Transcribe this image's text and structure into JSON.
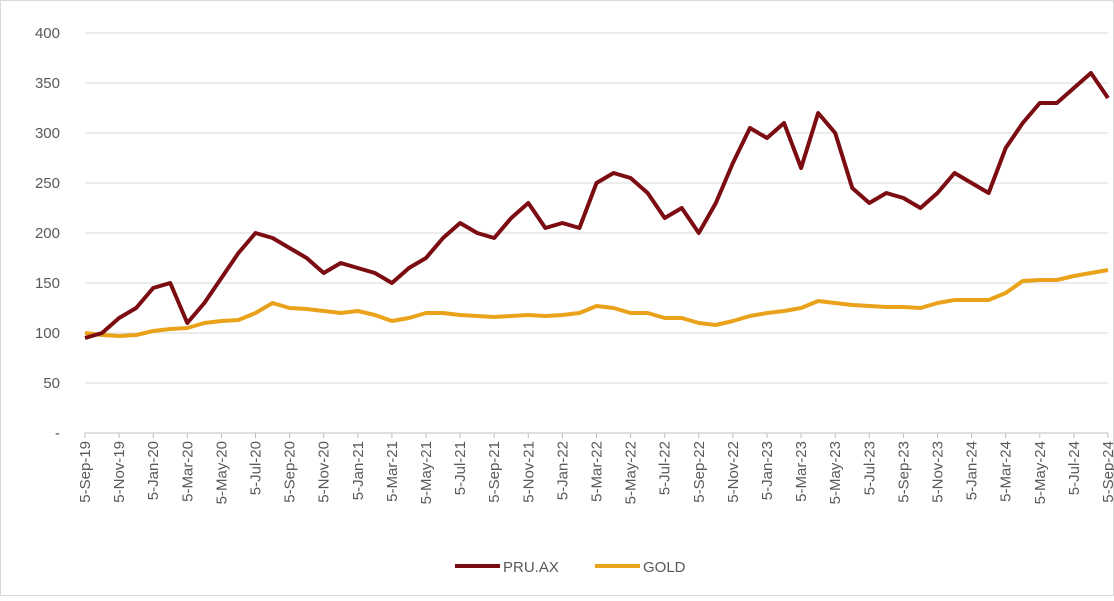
{
  "chart_data": {
    "type": "line",
    "categories": [
      "5-Sep-19",
      null,
      "5-Nov-19",
      null,
      "5-Jan-20",
      null,
      "5-Mar-20",
      null,
      "5-May-20",
      null,
      "5-Jul-20",
      null,
      "5-Sep-20",
      null,
      "5-Nov-20",
      null,
      "5-Jan-21",
      null,
      "5-Mar-21",
      null,
      "5-May-21",
      null,
      "5-Jul-21",
      null,
      "5-Sep-21",
      null,
      "5-Nov-21",
      null,
      "5-Jan-22",
      null,
      "5-Mar-22",
      null,
      "5-May-22",
      null,
      "5-Jul-22",
      null,
      "5-Sep-22",
      null,
      "5-Nov-22",
      null,
      "5-Jan-23",
      null,
      "5-Mar-23",
      null,
      "5-May-23",
      null,
      "5-Jul-23",
      null,
      "5-Sep-23",
      null,
      "5-Nov-23",
      null,
      "5-Jan-24",
      null,
      "5-Mar-24",
      null,
      "5-May-24",
      null,
      "5-Jul-24",
      null,
      "5-Sep-24"
    ],
    "series": [
      {
        "name": "PRU.AX",
        "color": "#7b0c12",
        "values": [
          95,
          100,
          115,
          125,
          145,
          150,
          110,
          130,
          155,
          180,
          200,
          195,
          185,
          175,
          160,
          170,
          165,
          160,
          150,
          165,
          175,
          195,
          210,
          200,
          195,
          215,
          230,
          205,
          210,
          205,
          250,
          260,
          255,
          240,
          215,
          225,
          200,
          230,
          270,
          305,
          295,
          310,
          265,
          320,
          300,
          245,
          230,
          240,
          235,
          225,
          240,
          260,
          250,
          240,
          285,
          310,
          330,
          330,
          345,
          360,
          335
        ]
      },
      {
        "name": "GOLD",
        "color": "#e9a21a",
        "values": [
          100,
          98,
          97,
          98,
          102,
          104,
          105,
          110,
          112,
          113,
          120,
          130,
          125,
          124,
          122,
          120,
          122,
          118,
          112,
          115,
          120,
          120,
          118,
          117,
          116,
          117,
          118,
          117,
          118,
          120,
          127,
          125,
          120,
          120,
          115,
          115,
          110,
          108,
          112,
          117,
          120,
          122,
          125,
          132,
          130,
          128,
          127,
          126,
          126,
          125,
          130,
          133,
          133,
          133,
          140,
          152,
          153,
          153,
          157,
          160,
          163
        ]
      }
    ],
    "ylim": [
      0,
      400
    ],
    "yticks": [
      {
        "value": 0,
        "label": "-"
      },
      50,
      100,
      150,
      200,
      250,
      300,
      350,
      400
    ],
    "grid": true,
    "legend": "bottom"
  }
}
